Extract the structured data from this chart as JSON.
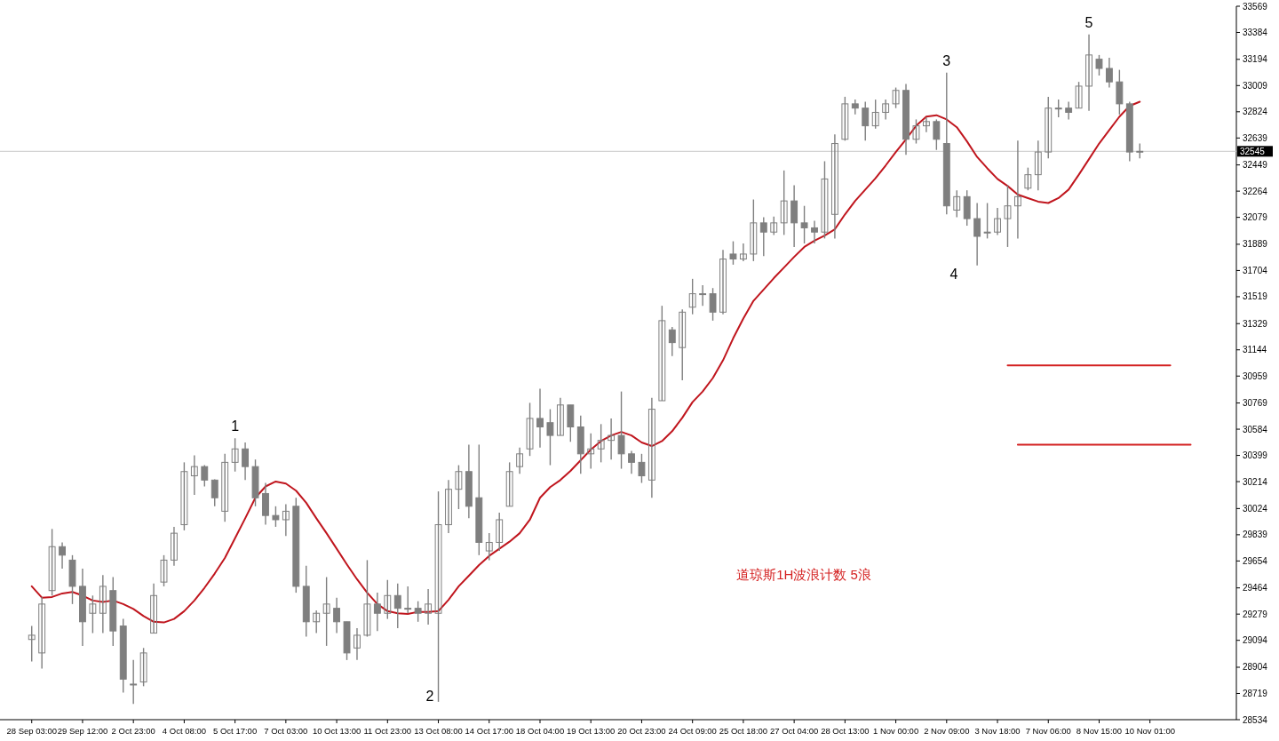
{
  "chart_data": {
    "type": "candlestick",
    "color": "#7f7f7f",
    "categories": [
      "28 Sep 03:00",
      null,
      null,
      null,
      null,
      "29 Sep 12:00",
      null,
      null,
      null,
      null,
      "2 Oct 23:00",
      null,
      null,
      null,
      null,
      "4 Oct 08:00",
      null,
      null,
      null,
      null,
      "5 Oct 17:00",
      null,
      null,
      null,
      null,
      "7 Oct 03:00",
      null,
      null,
      null,
      null,
      "10 Oct 13:00",
      null,
      null,
      null,
      null,
      "11 Oct 23:00",
      null,
      null,
      null,
      null,
      "13 Oct 08:00",
      null,
      null,
      null,
      null,
      "14 Oct 17:00",
      null,
      null,
      null,
      null,
      "18 Oct 04:00",
      null,
      null,
      null,
      null,
      "19 Oct 13:00",
      null,
      null,
      null,
      null,
      "20 Oct 23:00",
      null,
      null,
      null,
      null,
      "24 Oct 09:00",
      null,
      null,
      null,
      null,
      "25 Oct 18:00",
      null,
      null,
      null,
      null,
      "27 Oct 04:00",
      null,
      null,
      null,
      null,
      "28 Oct 13:00",
      null,
      null,
      null,
      null,
      "1 Nov 00:00",
      null,
      null,
      null,
      null,
      "2 Nov 09:00",
      null,
      null,
      null,
      null,
      "3 Nov 18:00",
      null,
      null,
      null,
      null,
      "7 Nov 06:00",
      null,
      null,
      null,
      null,
      "8 Nov 15:00",
      null,
      null,
      null,
      null,
      "10 Nov 01:00",
      null,
      null,
      null,
      null
    ],
    "ohlc": [
      [
        29100,
        29195,
        28945,
        29130
      ],
      [
        29005,
        29400,
        28895,
        29350
      ],
      [
        29445,
        29880,
        29410,
        29755
      ],
      [
        29755,
        29785,
        29600,
        29695
      ],
      [
        29660,
        29695,
        29350,
        29475
      ],
      [
        29475,
        29600,
        29055,
        29225
      ],
      [
        29285,
        29410,
        29145,
        29350
      ],
      [
        29285,
        29555,
        29145,
        29475
      ],
      [
        29445,
        29540,
        29055,
        29160
      ],
      [
        29195,
        29245,
        28725,
        28820
      ],
      [
        28785,
        28955,
        28645,
        28785
      ],
      [
        28800,
        29040,
        28770,
        29005
      ],
      [
        29145,
        29495,
        29145,
        29410
      ],
      [
        29505,
        29695,
        29475,
        29660
      ],
      [
        29660,
        29895,
        29620,
        29850
      ],
      [
        29910,
        30350,
        29870,
        30285
      ],
      [
        30255,
        30400,
        30120,
        30320
      ],
      [
        30320,
        30330,
        30180,
        30225
      ],
      [
        30225,
        30230,
        30040,
        30100
      ],
      [
        30005,
        30410,
        29930,
        30350
      ],
      [
        30350,
        30520,
        30285,
        30445
      ],
      [
        30445,
        30490,
        30225,
        30320
      ],
      [
        30320,
        30370,
        30040,
        30100
      ],
      [
        30130,
        30205,
        29910,
        29975
      ],
      [
        29975,
        30040,
        29895,
        29945
      ],
      [
        29945,
        30055,
        29830,
        30005
      ],
      [
        30040,
        30100,
        29430,
        29475
      ],
      [
        29475,
        29620,
        29120,
        29225
      ],
      [
        29225,
        29305,
        29145,
        29285
      ],
      [
        29285,
        29540,
        29055,
        29350
      ],
      [
        29320,
        29395,
        29145,
        29225
      ],
      [
        29225,
        29225,
        28955,
        29005
      ],
      [
        29040,
        29180,
        28955,
        29130
      ],
      [
        29130,
        29660,
        29120,
        29350
      ],
      [
        29350,
        29430,
        29160,
        29285
      ],
      [
        29285,
        29520,
        29245,
        29410
      ],
      [
        29410,
        29495,
        29180,
        29320
      ],
      [
        29320,
        29475,
        29285,
        29320
      ],
      [
        29320,
        29370,
        29225,
        29285
      ],
      [
        29285,
        29455,
        29205,
        29350
      ],
      [
        29285,
        30145,
        28660,
        29910
      ],
      [
        29910,
        30225,
        29850,
        30160
      ],
      [
        30160,
        30330,
        30020,
        30285
      ],
      [
        30285,
        30475,
        29955,
        30040
      ],
      [
        30100,
        30475,
        29695,
        29785
      ],
      [
        29725,
        29850,
        29660,
        29785
      ],
      [
        29785,
        29995,
        29725,
        29945
      ],
      [
        30040,
        30350,
        30040,
        30285
      ],
      [
        30320,
        30455,
        30270,
        30410
      ],
      [
        30445,
        30770,
        30395,
        30660
      ],
      [
        30660,
        30870,
        30455,
        30600
      ],
      [
        30630,
        30725,
        30330,
        30540
      ],
      [
        30540,
        30805,
        30540,
        30755
      ],
      [
        30755,
        30755,
        30495,
        30600
      ],
      [
        30600,
        30680,
        30270,
        30410
      ],
      [
        30410,
        30555,
        30305,
        30445
      ],
      [
        30445,
        30620,
        30350,
        30505
      ],
      [
        30505,
        30660,
        30370,
        30540
      ],
      [
        30540,
        30850,
        30305,
        30410
      ],
      [
        30410,
        30430,
        30270,
        30350
      ],
      [
        30350,
        30410,
        30205,
        30255
      ],
      [
        30225,
        30805,
        30100,
        30725
      ],
      [
        30785,
        31455,
        30785,
        31350
      ],
      [
        31285,
        31305,
        31100,
        31195
      ],
      [
        31160,
        31430,
        30930,
        31410
      ],
      [
        31445,
        31645,
        31395,
        31540
      ],
      [
        31540,
        31600,
        31455,
        31540
      ],
      [
        31540,
        31580,
        31350,
        31410
      ],
      [
        31410,
        31850,
        31395,
        31785
      ],
      [
        31820,
        31910,
        31745,
        31785
      ],
      [
        31785,
        31895,
        31770,
        31820
      ],
      [
        31820,
        32205,
        31770,
        32040
      ],
      [
        32040,
        32080,
        31805,
        31975
      ],
      [
        31975,
        32085,
        31955,
        32040
      ],
      [
        32040,
        32410,
        31955,
        32195
      ],
      [
        32195,
        32305,
        31870,
        32040
      ],
      [
        32040,
        32160,
        31895,
        32005
      ],
      [
        32005,
        32055,
        31895,
        31975
      ],
      [
        31975,
        32475,
        31930,
        32350
      ],
      [
        32100,
        32665,
        31930,
        32600
      ],
      [
        32630,
        32930,
        32620,
        32880
      ],
      [
        32880,
        32910,
        32805,
        32850
      ],
      [
        32850,
        32895,
        32620,
        32725
      ],
      [
        32725,
        32910,
        32705,
        32820
      ],
      [
        32820,
        32910,
        32770,
        32880
      ],
      [
        32880,
        32995,
        32850,
        32975
      ],
      [
        32975,
        33020,
        32520,
        32630
      ],
      [
        32630,
        32770,
        32600,
        32725
      ],
      [
        32725,
        32785,
        32680,
        32755
      ],
      [
        32755,
        32770,
        32555,
        32630
      ],
      [
        32600,
        33100,
        32100,
        32160
      ],
      [
        32130,
        32270,
        32080,
        32225
      ],
      [
        32225,
        32270,
        32020,
        32070
      ],
      [
        32070,
        32180,
        31740,
        31945
      ],
      [
        31975,
        32180,
        31930,
        31975
      ],
      [
        31975,
        32145,
        31955,
        32070
      ],
      [
        32070,
        32305,
        31870,
        32160
      ],
      [
        32160,
        32620,
        31930,
        32225
      ],
      [
        32285,
        32430,
        32270,
        32380
      ],
      [
        32380,
        32620,
        32270,
        32540
      ],
      [
        32540,
        32930,
        32495,
        32850
      ],
      [
        32850,
        32910,
        32785,
        32850
      ],
      [
        32850,
        32895,
        32770,
        32820
      ],
      [
        32850,
        33035,
        32850,
        33005
      ],
      [
        33005,
        33370,
        32830,
        33225
      ],
      [
        33195,
        33225,
        33080,
        33130
      ],
      [
        33130,
        33205,
        32995,
        33035
      ],
      [
        33035,
        33120,
        32805,
        32880
      ],
      [
        32880,
        32895,
        32475,
        32540
      ],
      [
        32540,
        32600,
        32495,
        32545
      ],
      null,
      null,
      null,
      null,
      null
    ],
    "series": [
      {
        "type": "line",
        "color": "#c0161e",
        "values": [
          29475,
          29395,
          29400,
          29425,
          29435,
          29410,
          29375,
          29365,
          29375,
          29350,
          29315,
          29265,
          29225,
          29220,
          29245,
          29300,
          29375,
          29465,
          29565,
          29675,
          29815,
          29955,
          30100,
          30180,
          30215,
          30200,
          30150,
          30065,
          29955,
          29850,
          29740,
          29630,
          29525,
          29430,
          29350,
          29300,
          29285,
          29280,
          29295,
          29295,
          29300,
          29380,
          29475,
          29550,
          29625,
          29690,
          29740,
          29790,
          29850,
          29945,
          30100,
          30175,
          30225,
          30290,
          30365,
          30440,
          30500,
          30540,
          30565,
          30540,
          30490,
          30465,
          30500,
          30570,
          30665,
          30775,
          30850,
          30945,
          31070,
          31225,
          31365,
          31490,
          31570,
          31650,
          31725,
          31800,
          31870,
          31915,
          31950,
          31995,
          32100,
          32195,
          32275,
          32355,
          32445,
          32540,
          32630,
          32725,
          32790,
          32800,
          32770,
          32715,
          32615,
          32505,
          32425,
          32350,
          32300,
          32240,
          32215,
          32190,
          32180,
          32215,
          32275,
          32380,
          32490,
          32600,
          32695,
          32790,
          32865,
          32895,
          null,
          null,
          null,
          null,
          null
        ]
      },
      {
        "type": "line",
        "color": "#d42020",
        "values": [
          null,
          null,
          null,
          null,
          null,
          null,
          null,
          null,
          null,
          null,
          null,
          null,
          null,
          null,
          null,
          null,
          null,
          null,
          null,
          null,
          null,
          null,
          null,
          null,
          null,
          null,
          null,
          null,
          null,
          null,
          null,
          null,
          null,
          null,
          null,
          null,
          null,
          null,
          null,
          null,
          null,
          null,
          null,
          null,
          null,
          null,
          null,
          null,
          null,
          null,
          null,
          null,
          null,
          null,
          null,
          null,
          null,
          null,
          null,
          null,
          null,
          null,
          null,
          null,
          null,
          null,
          null,
          null,
          null,
          null,
          null,
          null,
          null,
          null,
          null,
          null,
          null,
          null,
          null,
          null,
          null,
          null,
          null,
          null,
          null,
          null,
          null,
          null,
          null,
          null,
          null,
          null,
          null,
          null,
          null,
          null,
          31035,
          31035,
          31035,
          31035,
          31035,
          31035,
          31035,
          31035,
          31035,
          31035,
          31035,
          31035,
          31035,
          31035,
          31035,
          31035,
          31035,
          null,
          null
        ]
      },
      {
        "type": "line",
        "color": "#d42020",
        "values": [
          null,
          null,
          null,
          null,
          null,
          null,
          null,
          null,
          null,
          null,
          null,
          null,
          null,
          null,
          null,
          null,
          null,
          null,
          null,
          null,
          null,
          null,
          null,
          null,
          null,
          null,
          null,
          null,
          null,
          null,
          null,
          null,
          null,
          null,
          null,
          null,
          null,
          null,
          null,
          null,
          null,
          null,
          null,
          null,
          null,
          null,
          null,
          null,
          null,
          null,
          null,
          null,
          null,
          null,
          null,
          null,
          null,
          null,
          null,
          null,
          null,
          null,
          null,
          null,
          null,
          null,
          null,
          null,
          null,
          null,
          null,
          null,
          null,
          null,
          null,
          null,
          null,
          null,
          null,
          null,
          null,
          null,
          null,
          null,
          null,
          null,
          null,
          null,
          null,
          null,
          null,
          null,
          null,
          null,
          null,
          null,
          null,
          30475,
          30475,
          30475,
          30475,
          30475,
          30475,
          30475,
          30475,
          30475,
          30475,
          30475,
          30475,
          30475,
          30475,
          30475,
          30475,
          30475,
          30475
        ]
      }
    ],
    "ylim": [
      28534,
      33569
    ],
    "yticks": [
      28534,
      28719,
      28904,
      29094,
      29279,
      29464,
      29654,
      29839,
      30024,
      30214,
      30399,
      30584,
      30769,
      30959,
      31144,
      31329,
      31519,
      31704,
      31889,
      32079,
      32264,
      32449,
      32639,
      32824,
      33009,
      33194,
      33384,
      33569
    ],
    "ref_lines": [
      {
        "axis": "y",
        "value": 32545,
        "label": "32545",
        "color": "#c8c8c8"
      }
    ],
    "annotations": [
      {
        "text": "1",
        "y": 30520
      },
      "2",
      {
        "text": "3",
        "y": 33100
      },
      "4",
      {
        "text": "5",
        "y": 33370
      },
      "道琼斯1H波浪计数 5浪"
    ]
  }
}
